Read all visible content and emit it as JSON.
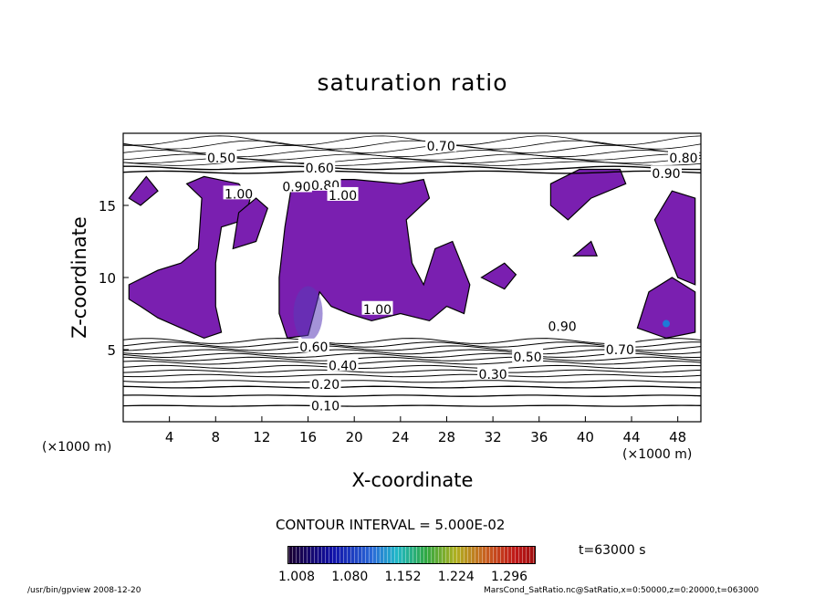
{
  "title": "saturation ratio",
  "x_unit": "(×1000 m)",
  "contour_interval": "CONTOUR INTERVAL = 5.000E-02",
  "time": "t=63000 s",
  "footer": {
    "left": "/usr/bin/gpview   2008-12-20",
    "right": "MarsCond_SatRatio.nc@SatRatio,x=0:50000,z=0:20000,t=063000"
  },
  "colors": {
    "fill": "#7a1fb0",
    "background": "#ffffff",
    "line": "#000000"
  },
  "chart_data": {
    "type": "contour",
    "title": "saturation ratio",
    "xlabel": "X-coordinate",
    "ylabel": "Z-coordinate",
    "x_unit": "(×1000 m)",
    "xlim": [
      0,
      50
    ],
    "ylim": [
      0,
      20
    ],
    "xticks": [
      4,
      8,
      12,
      16,
      20,
      24,
      28,
      32,
      36,
      40,
      44,
      48
    ],
    "yticks": [
      5,
      10,
      15
    ],
    "contour_interval": 0.05,
    "colorbar": {
      "ticks": [
        "1.008",
        "1.080",
        "1.152",
        "1.224",
        "1.296"
      ],
      "values": [
        1.008,
        1.08,
        1.152,
        1.224,
        1.296
      ]
    },
    "contour_labels": [
      {
        "text": "0.10",
        "x": 17.5,
        "z": 1.1
      },
      {
        "text": "0.20",
        "x": 17.5,
        "z": 2.6
      },
      {
        "text": "0.30",
        "x": 32.0,
        "z": 3.3
      },
      {
        "text": "0.40",
        "x": 19.0,
        "z": 3.9
      },
      {
        "text": "0.50",
        "x": 35.0,
        "z": 4.5
      },
      {
        "text": "0.60",
        "x": 16.5,
        "z": 5.2
      },
      {
        "text": "0.70",
        "x": 43.0,
        "z": 5.0
      },
      {
        "text": "0.90",
        "x": 38.0,
        "z": 6.6
      },
      {
        "text": "1.00",
        "x": 22.0,
        "z": 7.8
      },
      {
        "text": "1.00",
        "x": 10.0,
        "z": 15.8
      },
      {
        "text": "0.50",
        "x": 8.5,
        "z": 18.3
      },
      {
        "text": "0.60",
        "x": 17.0,
        "z": 17.6
      },
      {
        "text": "0.90",
        "x": 15.0,
        "z": 16.3
      },
      {
        "text": "0.80",
        "x": 17.5,
        "z": 16.4
      },
      {
        "text": "1.00",
        "x": 19.0,
        "z": 15.7
      },
      {
        "text": "0.70",
        "x": 27.5,
        "z": 19.1
      },
      {
        "text": "0.80",
        "x": 48.5,
        "z": 18.3
      },
      {
        "text": "0.90",
        "x": 47.0,
        "z": 17.2
      }
    ],
    "time": "t=63000 s"
  }
}
